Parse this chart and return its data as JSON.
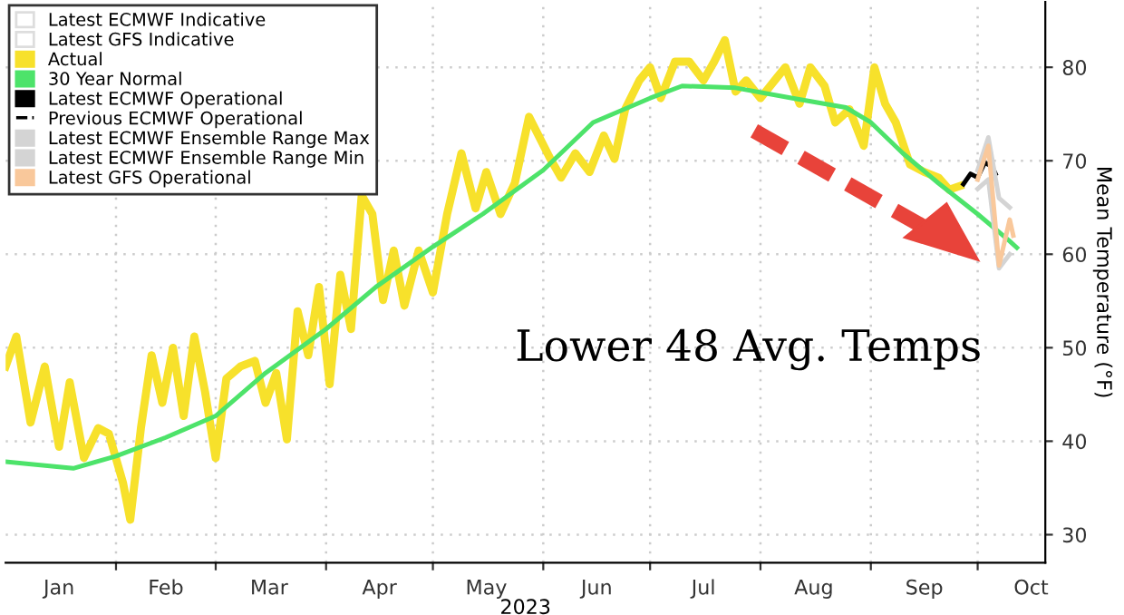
{
  "chart_data": {
    "type": "line",
    "xlabel": "2023",
    "ylabel": "Mean Temperature (°F)",
    "annotations": [
      "Lower 48 Avg. Temps"
    ],
    "xlim": [
      "2023-01-01",
      "2023-10-20"
    ],
    "ylim": [
      27,
      87
    ],
    "yticks": [
      30,
      40,
      50,
      60,
      70,
      80
    ],
    "xticks": [
      {
        "value": "2023-01-16",
        "label": "Jan"
      },
      {
        "value": "2023-02-01",
        "label": null
      },
      {
        "value": "2023-02-15",
        "label": "Feb"
      },
      {
        "value": "2023-03-01",
        "label": null
      },
      {
        "value": "2023-03-16",
        "label": "Mar"
      },
      {
        "value": "2023-04-01",
        "label": null
      },
      {
        "value": "2023-04-16",
        "label": "Apr"
      },
      {
        "value": "2023-05-01",
        "label": null
      },
      {
        "value": "2023-05-16",
        "label": "May"
      },
      {
        "value": "2023-06-01",
        "label": null
      },
      {
        "value": "2023-06-16",
        "label": "Jun"
      },
      {
        "value": "2023-07-01",
        "label": null
      },
      {
        "value": "2023-07-16",
        "label": "Jul"
      },
      {
        "value": "2023-08-01",
        "label": null
      },
      {
        "value": "2023-08-16",
        "label": "Aug"
      },
      {
        "value": "2023-09-01",
        "label": null
      },
      {
        "value": "2023-09-16",
        "label": "Sep"
      },
      {
        "value": "2023-10-01",
        "label": null
      },
      {
        "value": "2023-10-16",
        "label": "Oct"
      }
    ],
    "grid": true,
    "legend": "top left",
    "series": [
      {
        "name": "Latest ECMWF Indicative",
        "color": "#ffffff"
      },
      {
        "name": "Latest GFS Indicative",
        "color": "#ffffff"
      },
      {
        "name": "Actual",
        "color": "#f7e12b",
        "x": [
          "2023-01-01",
          "2023-01-04",
          "2023-01-08",
          "2023-01-12",
          "2023-01-16",
          "2023-01-19",
          "2023-01-23",
          "2023-01-27",
          "2023-01-30",
          "2023-02-03",
          "2023-02-05",
          "2023-02-08",
          "2023-02-11",
          "2023-02-14",
          "2023-02-17",
          "2023-02-20",
          "2023-02-23",
          "2023-02-26",
          "2023-03-01",
          "2023-03-04",
          "2023-03-08",
          "2023-03-12",
          "2023-03-15",
          "2023-03-18",
          "2023-03-21",
          "2023-03-24",
          "2023-03-27",
          "2023-03-30",
          "2023-04-02",
          "2023-04-05",
          "2023-04-08",
          "2023-04-11",
          "2023-04-14",
          "2023-04-17",
          "2023-04-20",
          "2023-04-23",
          "2023-04-27",
          "2023-05-01",
          "2023-05-05",
          "2023-05-09",
          "2023-05-13",
          "2023-05-16",
          "2023-05-20",
          "2023-05-24",
          "2023-05-28",
          "2023-06-03",
          "2023-06-06",
          "2023-06-10",
          "2023-06-14",
          "2023-06-18",
          "2023-06-21",
          "2023-06-24",
          "2023-06-28",
          "2023-07-01",
          "2023-07-04",
          "2023-07-08",
          "2023-07-12",
          "2023-07-16",
          "2023-07-19",
          "2023-07-22",
          "2023-07-25",
          "2023-07-28",
          "2023-08-01",
          "2023-08-05",
          "2023-08-08",
          "2023-08-12",
          "2023-08-15",
          "2023-08-19",
          "2023-08-22",
          "2023-08-26",
          "2023-08-30",
          "2023-09-02",
          "2023-09-05",
          "2023-09-08",
          "2023-09-12",
          "2023-09-16",
          "2023-09-20",
          "2023-09-23",
          "2023-09-26"
        ],
        "values": [
          48,
          51.2,
          42,
          48,
          39.4,
          46.3,
          38.2,
          41.4,
          40.8,
          35.5,
          31.6,
          41.4,
          49.2,
          44.1,
          50,
          42.7,
          51.2,
          45.3,
          38.2,
          46.7,
          48,
          48.6,
          44.1,
          47.3,
          40.2,
          53.9,
          49.2,
          56.5,
          46.1,
          57.8,
          52,
          66.3,
          64.3,
          55.1,
          60.4,
          54.5,
          60.4,
          55.9,
          64.3,
          70.8,
          64.9,
          68.8,
          64.3,
          67.6,
          74.7,
          70.2,
          68.2,
          70.8,
          68.8,
          72.7,
          70.2,
          75.5,
          78.6,
          80,
          76.7,
          80.6,
          80.6,
          78.6,
          80.6,
          82.9,
          77.4,
          78.6,
          76.7,
          78.6,
          80,
          76.1,
          80,
          78,
          74.1,
          75.5,
          71.6,
          80,
          76.1,
          74.1,
          69.6,
          68.8,
          68.2,
          66.9,
          67.3
        ]
      },
      {
        "name": "30 Year Normal",
        "color": "#4de36a",
        "x": [
          "2023-01-01",
          "2023-01-20",
          "2023-02-01",
          "2023-02-15",
          "2023-03-01",
          "2023-03-15",
          "2023-04-01",
          "2023-04-15",
          "2023-05-01",
          "2023-05-15",
          "2023-06-01",
          "2023-06-15",
          "2023-07-01",
          "2023-07-10",
          "2023-07-25",
          "2023-08-10",
          "2023-08-25",
          "2023-09-01",
          "2023-09-10",
          "2023-09-20",
          "2023-10-01",
          "2023-10-10",
          "2023-10-12"
        ],
        "values": [
          37.8,
          37.1,
          38.4,
          40.4,
          42.7,
          47.3,
          52,
          56.5,
          60.8,
          64.3,
          69,
          74.1,
          76.7,
          78,
          77.8,
          76.7,
          75.7,
          74.1,
          70.8,
          67.6,
          64.3,
          61.4,
          60.7
        ]
      },
      {
        "name": "Latest ECMWF Operational",
        "color": "#000000",
        "x": [
          "2023-09-27",
          "2023-09-29",
          "2023-10-01",
          "2023-10-03",
          "2023-10-05",
          "2023-10-06"
        ],
        "values": [
          67.5,
          68.6,
          68.2,
          69.8,
          69.4,
          68.6
        ]
      },
      {
        "name": "Previous ECMWF Operational",
        "color": "#000000",
        "line_style": "dashed"
      },
      {
        "name": "Latest ECMWF Ensemble Range Max",
        "color": "#d4d4d4",
        "x": [
          "2023-10-01",
          "2023-10-04",
          "2023-10-07",
          "2023-10-10"
        ],
        "values": [
          69,
          72.5,
          66,
          65
        ]
      },
      {
        "name": "Latest ECMWF Ensemble Range Min",
        "color": "#d4d4d4",
        "x": [
          "2023-10-01",
          "2023-10-04",
          "2023-10-07",
          "2023-10-10"
        ],
        "values": [
          67,
          68,
          58.5,
          60
        ]
      },
      {
        "name": "Latest GFS Operational",
        "color": "#f9c89b",
        "x": [
          "2023-10-01",
          "2023-10-04",
          "2023-10-07",
          "2023-10-10",
          "2023-10-11"
        ],
        "values": [
          68,
          71.6,
          58.8,
          63.7,
          62
        ]
      }
    ]
  }
}
